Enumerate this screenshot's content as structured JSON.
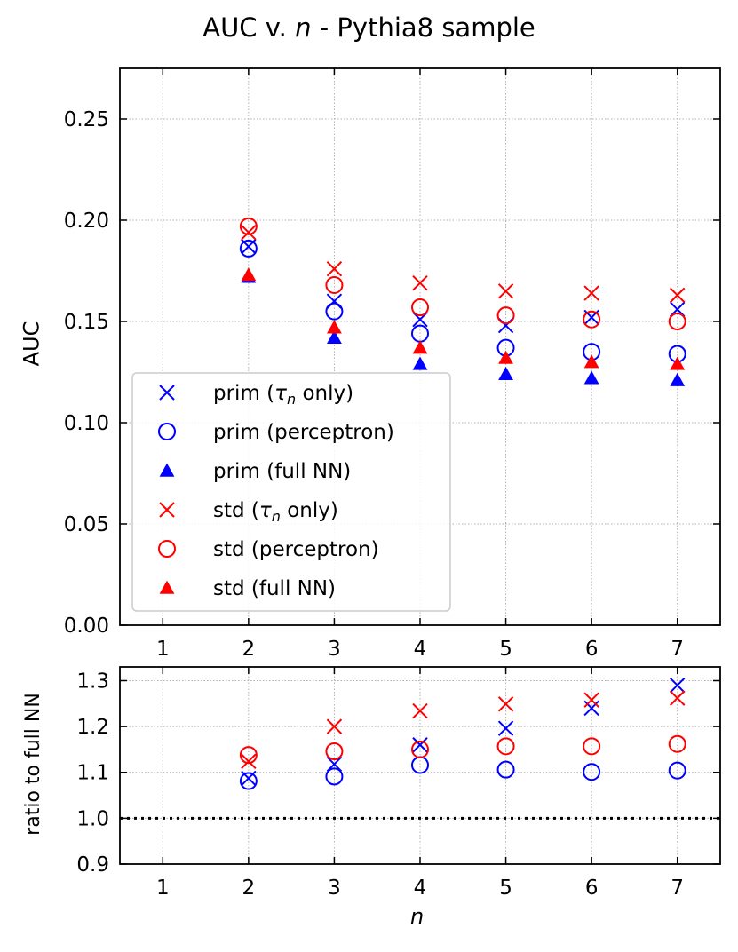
{
  "chart_data": [
    {
      "type": "scatter",
      "title": "AUC v. n - Pythia8 sample",
      "title_prefix": "AUC v.",
      "title_var": "n",
      "title_suffix": "- Pythia8 sample",
      "xlabel": "",
      "ylabel": "AUC",
      "xlim": [
        0.5,
        7.5
      ],
      "ylim": [
        0.0,
        0.275
      ],
      "xticks": [
        1,
        2,
        3,
        4,
        5,
        6,
        7
      ],
      "yticks": [
        0.0,
        0.05,
        0.1,
        0.15,
        0.2,
        0.25
      ],
      "ytick_labels": [
        "0.00",
        "0.05",
        "0.10",
        "0.15",
        "0.20",
        "0.25"
      ],
      "grid": true,
      "legend_position": "lower-left",
      "x": [
        2,
        3,
        4,
        5,
        6,
        7
      ],
      "series": [
        {
          "name": "prim (τn only)",
          "label_prefix": "prim (",
          "label_var": "τ",
          "label_sub": "n",
          "label_suffix": " only)",
          "marker": "x",
          "color": "#0000ff",
          "values": [
            0.187,
            0.16,
            0.151,
            0.148,
            0.152,
            0.156
          ]
        },
        {
          "name": "prim (perceptron)",
          "label": "prim (perceptron)",
          "marker": "o",
          "color": "#0000ff",
          "values": [
            0.186,
            0.155,
            0.144,
            0.137,
            0.135,
            0.134
          ]
        },
        {
          "name": "prim (full NN)",
          "label": "prim (full NN)",
          "marker": "^",
          "color": "#0000ff",
          "values": [
            0.172,
            0.142,
            0.129,
            0.124,
            0.122,
            0.121
          ]
        },
        {
          "name": "std (τn only)",
          "label_prefix": "std (",
          "label_var": "τ",
          "label_sub": "n",
          "label_suffix": " only)",
          "marker": "x",
          "color": "#ff0000",
          "values": [
            0.194,
            0.176,
            0.169,
            0.165,
            0.164,
            0.163
          ]
        },
        {
          "name": "std (perceptron)",
          "label": "std (perceptron)",
          "marker": "o",
          "color": "#ff0000",
          "values": [
            0.197,
            0.168,
            0.157,
            0.153,
            0.151,
            0.15
          ]
        },
        {
          "name": "std (full NN)",
          "label": "std (full NN)",
          "marker": "^",
          "color": "#ff0000",
          "values": [
            0.173,
            0.147,
            0.137,
            0.132,
            0.13,
            0.129
          ]
        }
      ]
    },
    {
      "type": "scatter",
      "title": "",
      "xlabel": "n",
      "ylabel": "ratio to full NN",
      "xlim": [
        0.5,
        7.5
      ],
      "ylim": [
        0.9,
        1.33
      ],
      "xticks": [
        1,
        2,
        3,
        4,
        5,
        6,
        7
      ],
      "yticks": [
        0.9,
        1.0,
        1.1,
        1.2,
        1.3
      ],
      "ytick_labels": [
        "0.9",
        "1.0",
        "1.1",
        "1.2",
        "1.3"
      ],
      "grid": true,
      "reference_line": 1.0,
      "x": [
        2,
        3,
        4,
        5,
        6,
        7
      ],
      "series": [
        {
          "name": "prim (τn only)",
          "marker": "x",
          "color": "#0000ff",
          "values": [
            1.087,
            1.118,
            1.16,
            1.196,
            1.24,
            1.29
          ]
        },
        {
          "name": "prim (perceptron)",
          "marker": "o",
          "color": "#0000ff",
          "values": [
            1.081,
            1.091,
            1.116,
            1.106,
            1.101,
            1.104
          ]
        },
        {
          "name": "std (τn only)",
          "marker": "x",
          "color": "#ff0000",
          "values": [
            1.124,
            1.2,
            1.234,
            1.249,
            1.258,
            1.262
          ]
        },
        {
          "name": "std (perceptron)",
          "marker": "o",
          "color": "#ff0000",
          "values": [
            1.138,
            1.146,
            1.15,
            1.157,
            1.157,
            1.162
          ]
        }
      ]
    }
  ]
}
